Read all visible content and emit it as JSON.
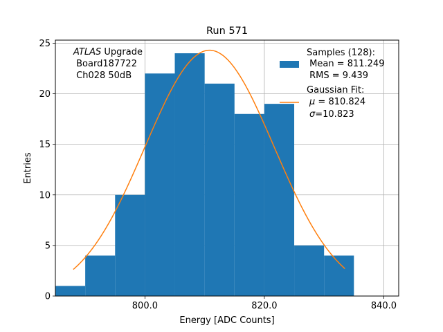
{
  "chart_data": {
    "type": "bar",
    "title": "Run 571",
    "xlabel": "Energy [ADC Counts]",
    "ylabel": "Entries",
    "xlim": [
      785,
      842.5
    ],
    "ylim": [
      0,
      25.3
    ],
    "x_ticks": [
      800,
      820,
      840
    ],
    "x_tick_labels": [
      "800.0",
      "820.0",
      "840.0"
    ],
    "y_ticks": [
      0,
      5,
      10,
      15,
      20,
      25
    ],
    "y_tick_labels": [
      "0",
      "5",
      "10",
      "15",
      "20",
      "25"
    ],
    "grid": true,
    "bin_edges": [
      785,
      790,
      795,
      800,
      805,
      810,
      815,
      820,
      825,
      830,
      835
    ],
    "counts": [
      1,
      4,
      10,
      22,
      24,
      21,
      18,
      19,
      5,
      4
    ],
    "fit": {
      "mu": 810.824,
      "sigma": 10.823,
      "amplitude": 24.3,
      "x_range": [
        788,
        833.5
      ]
    },
    "bar_color": "#1f77b4",
    "fit_color": "#ff7f0e",
    "annotation": {
      "atlas": "ATLAS",
      "rest": " Upgrade",
      "line2": " Board187722",
      "line3": " Ch028 50dB"
    },
    "legend": {
      "samples_title": "Samples (128):",
      "samples_mean": " Mean = 811.249",
      "samples_rms": " RMS = 9.439",
      "fit_title": "Gaussian Fit:",
      "fit_mu_symbol": "μ",
      "fit_mu_value": " = 810.824",
      "fit_sigma_symbol": "σ",
      "fit_sigma_value": "=10.823"
    }
  }
}
